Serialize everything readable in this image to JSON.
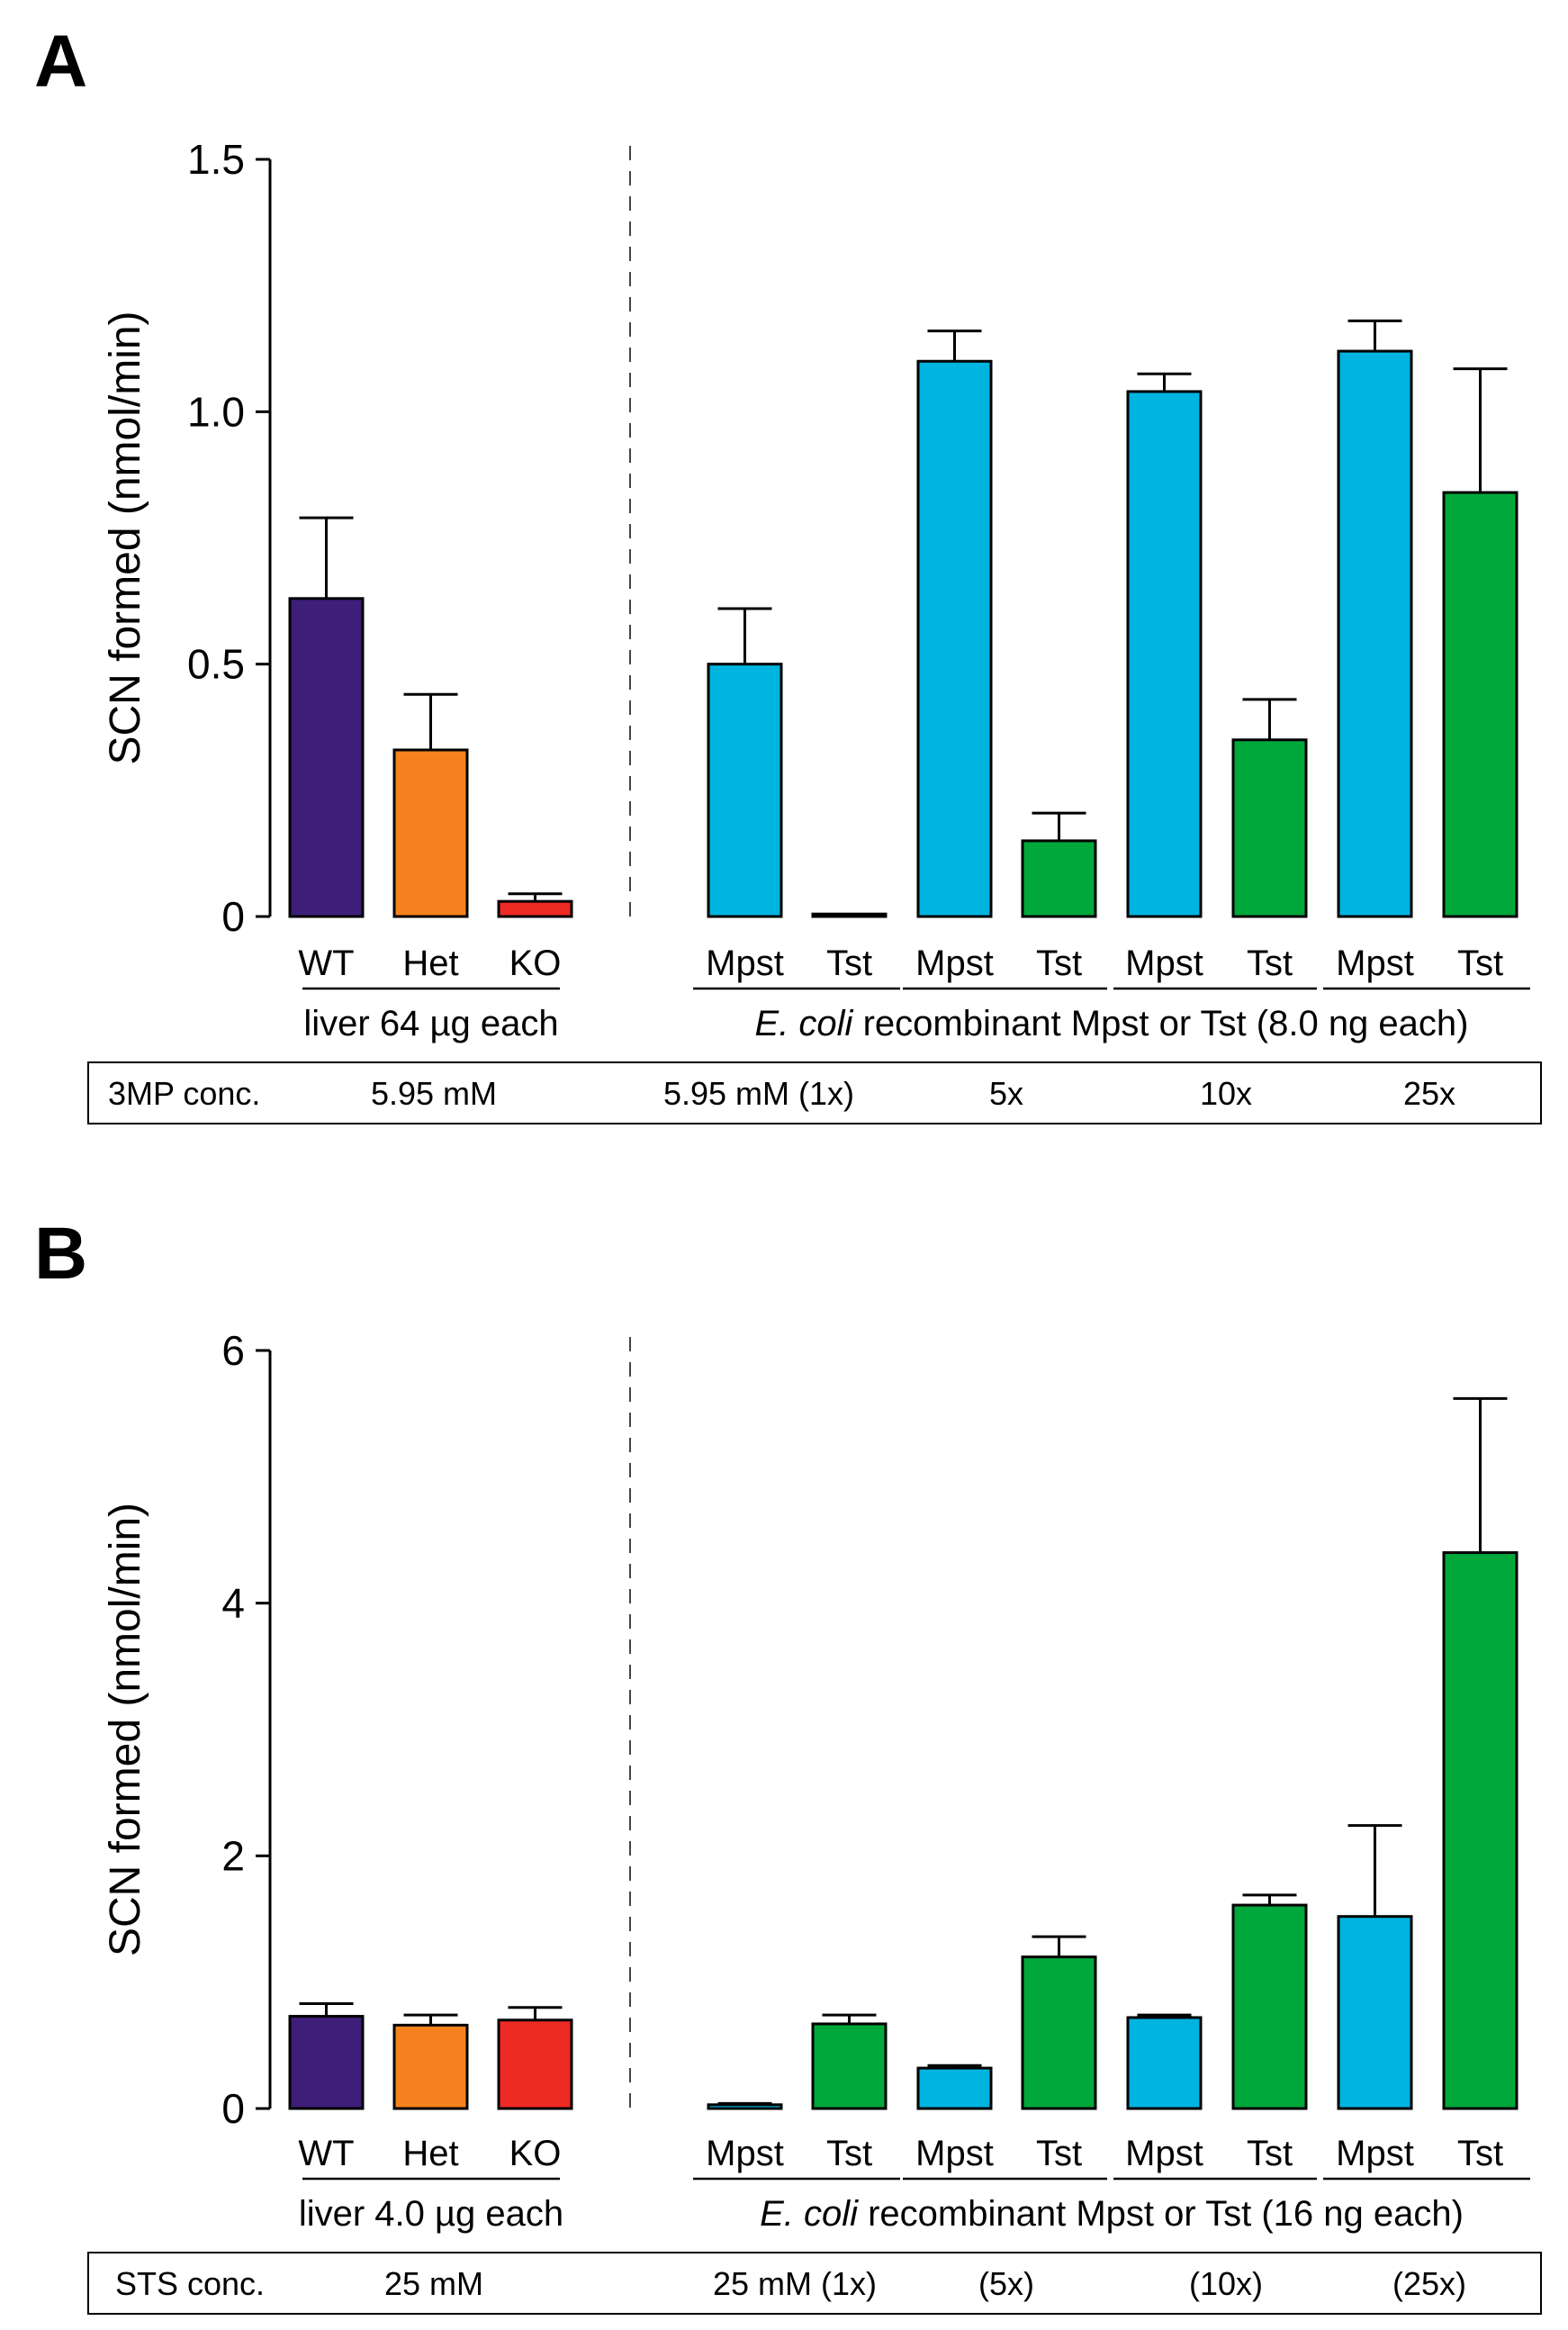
{
  "chart_data": [
    {
      "panel": "A",
      "type": "bar",
      "ylabel": "SCN formed (nmol/min)",
      "ylim": [
        0,
        1.5
      ],
      "yticks": [
        "0",
        "0.5",
        "1.0",
        "1.5"
      ],
      "ytick_values": [
        0,
        0.5,
        1.0,
        1.5
      ],
      "bars": [
        {
          "label": "WT",
          "value": 0.63,
          "error": 0.16,
          "color": "#3d1e78"
        },
        {
          "label": "Het",
          "value": 0.33,
          "error": 0.11,
          "color": "#f5821f"
        },
        {
          "label": "KO",
          "value": 0.03,
          "error": 0.015,
          "color": "#ee2a24"
        },
        {
          "label": "Mpst",
          "value": 0.5,
          "error": 0.11,
          "color": "#00b4e0"
        },
        {
          "label": "Tst",
          "value": 0.005,
          "error": 0.0,
          "color": "#00a83b"
        },
        {
          "label": "Mpst",
          "value": 1.1,
          "error": 0.06,
          "color": "#00b4e0"
        },
        {
          "label": "Tst",
          "value": 0.15,
          "error": 0.055,
          "color": "#00a83b"
        },
        {
          "label": "Mpst",
          "value": 1.04,
          "error": 0.035,
          "color": "#00b4e0"
        },
        {
          "label": "Tst",
          "value": 0.35,
          "error": 0.08,
          "color": "#00a83b"
        },
        {
          "label": "Mpst",
          "value": 1.12,
          "error": 0.06,
          "color": "#00b4e0"
        },
        {
          "label": "Tst",
          "value": 0.84,
          "error": 0.245,
          "color": "#00a83b"
        }
      ],
      "group_labels": {
        "liver": "liver 64 µg each",
        "ecoli_italic": "E. coli",
        "ecoli_rest": " recombinant Mpst or Tst (8.0 ng each)"
      },
      "conc_row": {
        "label": "3MP conc.",
        "values": [
          "5.95 mM",
          "5.95 mM (1x)",
          "5x",
          "10x",
          "25x"
        ]
      }
    },
    {
      "panel": "B",
      "type": "bar",
      "ylabel": "SCN formed (nmol/min)",
      "ylim": [
        0,
        6
      ],
      "yticks": [
        "0",
        "2",
        "4",
        "6"
      ],
      "ytick_values": [
        0,
        2,
        4,
        6
      ],
      "bars": [
        {
          "label": "WT",
          "value": 0.73,
          "error": 0.1,
          "color": "#3d1e78"
        },
        {
          "label": "Het",
          "value": 0.66,
          "error": 0.08,
          "color": "#f5821f"
        },
        {
          "label": "KO",
          "value": 0.7,
          "error": 0.1,
          "color": "#ee2a24"
        },
        {
          "label": "Mpst",
          "value": 0.03,
          "error": 0.01,
          "color": "#00b4e0"
        },
        {
          "label": "Tst",
          "value": 0.67,
          "error": 0.07,
          "color": "#00a83b"
        },
        {
          "label": "Mpst",
          "value": 0.32,
          "error": 0.02,
          "color": "#00b4e0"
        },
        {
          "label": "Tst",
          "value": 1.2,
          "error": 0.16,
          "color": "#00a83b"
        },
        {
          "label": "Mpst",
          "value": 0.72,
          "error": 0.02,
          "color": "#00b4e0"
        },
        {
          "label": "Tst",
          "value": 1.61,
          "error": 0.08,
          "color": "#00a83b"
        },
        {
          "label": "Mpst",
          "value": 1.52,
          "error": 0.72,
          "color": "#00b4e0"
        },
        {
          "label": "Tst",
          "value": 4.4,
          "error": 1.22,
          "color": "#00a83b"
        }
      ],
      "group_labels": {
        "liver": "liver 4.0 µg each",
        "ecoli_italic": "E. coli",
        "ecoli_rest": " recombinant Mpst or Tst (16 ng each)"
      },
      "conc_row": {
        "label": "STS conc.",
        "values": [
          "25 mM",
          "25 mM (1x)",
          "(5x)",
          "(10x)",
          "(25x)"
        ]
      }
    }
  ]
}
